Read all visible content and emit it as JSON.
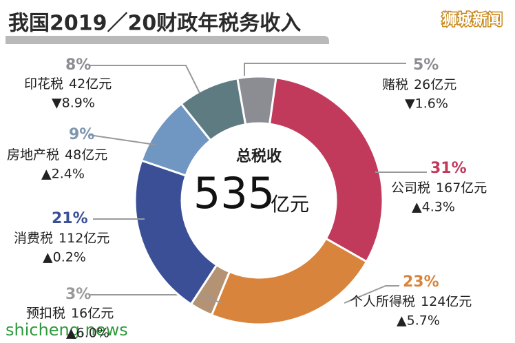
{
  "header": {
    "title": "我国2019／20财政年税务收入",
    "watermark": "狮城新闻",
    "footer": "shicheng.news"
  },
  "chart_data": {
    "type": "donut",
    "center_title": "总税收",
    "total": 535,
    "total_unit": "亿元",
    "categories": [
      "赌税",
      "公司税",
      "个人所得税",
      "预扣税",
      "消费税",
      "房地产税",
      "印花税"
    ],
    "values": [
      5,
      31,
      23,
      3,
      21,
      9,
      8
    ],
    "value_labels": [
      "5%",
      "31%",
      "23%",
      "3%",
      "21%",
      "9%",
      "8%"
    ],
    "amount_labels": [
      "26亿元",
      "167亿元",
      "124亿元",
      "16亿元",
      "112亿元",
      "48亿元",
      "42亿元"
    ],
    "change_labels": [
      "▼1.6%",
      "▲4.3%",
      "▲5.7%",
      "▲6.0%",
      "▲0.2%",
      "▲2.4%",
      "▼8.9%"
    ],
    "colors": [
      "#8b8d92",
      "#c23a5b",
      "#d9843c",
      "#b39373",
      "#3b4f97",
      "#7096c2",
      "#5f7b82"
    ],
    "label_colors": [
      "#8b8d92",
      "#c23a5b",
      "#d9843c",
      "#9a9a9a",
      "#3b4f97",
      "#7d95b0",
      "#8b8d92"
    ]
  }
}
